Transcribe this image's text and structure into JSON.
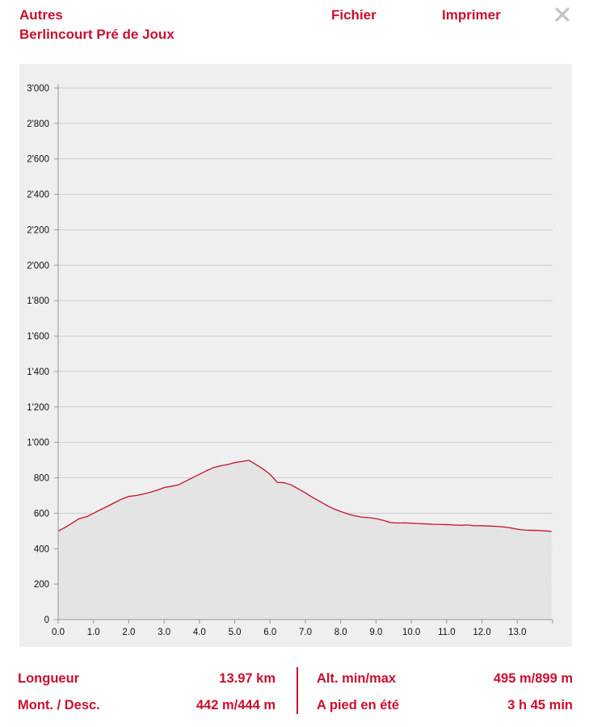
{
  "header": {
    "category": "Autres",
    "title": "Berlincourt Pré de Joux",
    "file_label": "Fichier",
    "print_label": "Imprimer",
    "close_icon": "close-icon"
  },
  "colors": {
    "accent": "#c8102e",
    "panel_bg": "#efefef",
    "area_fill": "#e4e4e4",
    "gridline": "#cccccc"
  },
  "chart_data": {
    "type": "area",
    "title": "",
    "xlabel": "",
    "ylabel": "",
    "xlim": [
      0,
      14
    ],
    "ylim": [
      0,
      3000
    ],
    "grid": true,
    "legend": "none",
    "x_ticks": [
      "0.0",
      "1.0",
      "2.0",
      "3.0",
      "4.0",
      "5.0",
      "6.0",
      "7.0",
      "8.0",
      "9.0",
      "10.0",
      "11.0",
      "12.0",
      "13.0"
    ],
    "x_tick_values": [
      0,
      1,
      2,
      3,
      4,
      5,
      6,
      7,
      8,
      9,
      10,
      11,
      12,
      13
    ],
    "y_ticks": [
      "0",
      "200",
      "400",
      "600",
      "800",
      "1'000",
      "1'200",
      "1'400",
      "1'600",
      "1'800",
      "2'000",
      "2'200",
      "2'400",
      "2'600",
      "2'800",
      "3'000"
    ],
    "y_tick_values": [
      0,
      200,
      400,
      600,
      800,
      1000,
      1200,
      1400,
      1600,
      1800,
      2000,
      2200,
      2400,
      2600,
      2800,
      3000
    ],
    "series": [
      {
        "x": [
          0,
          0.2,
          0.4,
          0.6,
          0.8,
          1.0,
          1.2,
          1.4,
          1.6,
          1.8,
          2.0,
          2.2,
          2.4,
          2.6,
          2.8,
          3.0,
          3.2,
          3.4,
          3.6,
          3.8,
          4.0,
          4.2,
          4.4,
          4.6,
          4.8,
          5.0,
          5.2,
          5.4,
          5.6,
          5.8,
          6.0,
          6.2,
          6.4,
          6.6,
          6.8,
          7.0,
          7.2,
          7.4,
          7.6,
          7.8,
          8.0,
          8.2,
          8.4,
          8.6,
          8.8,
          9.0,
          9.2,
          9.4,
          9.6,
          9.8,
          10.0,
          10.2,
          10.4,
          10.6,
          10.8,
          11.0,
          11.2,
          11.4,
          11.6,
          11.8,
          12.0,
          12.2,
          12.4,
          12.6,
          12.8,
          13.0,
          13.2,
          13.4,
          13.6,
          13.8,
          13.97
        ],
        "values": [
          500,
          520,
          545,
          570,
          580,
          600,
          620,
          640,
          660,
          680,
          695,
          700,
          708,
          718,
          730,
          745,
          752,
          760,
          780,
          800,
          820,
          840,
          858,
          868,
          875,
          886,
          892,
          899,
          875,
          850,
          820,
          775,
          772,
          760,
          738,
          715,
          690,
          668,
          645,
          625,
          610,
          596,
          586,
          578,
          575,
          570,
          560,
          548,
          545,
          546,
          544,
          542,
          540,
          538,
          537,
          536,
          534,
          532,
          534,
          529,
          530,
          528,
          526,
          523,
          518,
          510,
          505,
          504,
          503,
          500,
          498
        ]
      }
    ]
  },
  "stats": {
    "length_label": "Longueur",
    "length_value": "13.97 km",
    "ascent_label": "Mont. / Desc.",
    "ascent_value": "442 m/444 m",
    "alt_label": "Alt. min/max",
    "alt_value": "495 m/899 m",
    "walk_label": "A pied en été",
    "walk_value": "3 h 45 min"
  }
}
